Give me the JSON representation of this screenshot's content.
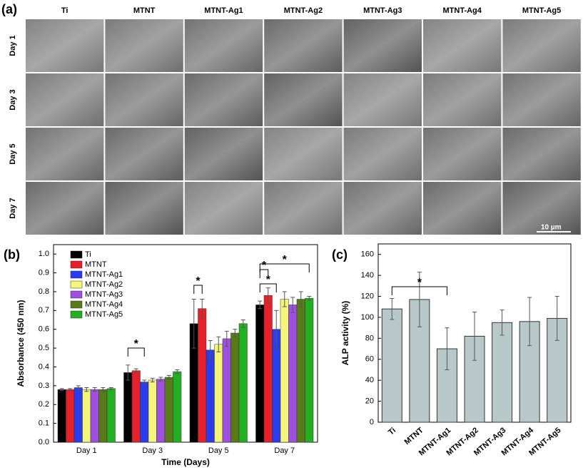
{
  "panel_a": {
    "label": "(a)",
    "columns": [
      "Ti",
      "MTNT",
      "MTNT-Ag1",
      "MTNT-Ag2",
      "MTNT-Ag3",
      "MTNT-Ag4",
      "MTNT-Ag5"
    ],
    "rows": [
      "Day 1",
      "Day 3",
      "Day 5",
      "Day 7"
    ],
    "scale_bar": "10 µm"
  },
  "chart_data": [
    {
      "type": "bar",
      "panel_label": "(b)",
      "x_label": "Time (Days)",
      "y_label": "Absorbance (450 nm)",
      "categories": [
        "Day 1",
        "Day 3",
        "Day 5",
        "Day 7"
      ],
      "series": [
        {
          "name": "Ti",
          "color": "#000000",
          "values": [
            0.28,
            0.37,
            0.63,
            0.73
          ],
          "errors": [
            0.005,
            0.04,
            0.13,
            0.02
          ]
        },
        {
          "name": "MTNT",
          "color": "#e8202a",
          "values": [
            0.28,
            0.38,
            0.71,
            0.78
          ],
          "errors": [
            0.005,
            0.01,
            0.05,
            0.04
          ]
        },
        {
          "name": "MTNT-Ag1",
          "color": "#2a3cf0",
          "values": [
            0.29,
            0.32,
            0.49,
            0.6
          ],
          "errors": [
            0.01,
            0.01,
            0.05,
            0.1
          ]
        },
        {
          "name": "MTNT-Ag2",
          "color": "#f5f57a",
          "values": [
            0.28,
            0.33,
            0.52,
            0.76
          ],
          "errors": [
            0.01,
            0.01,
            0.04,
            0.04
          ]
        },
        {
          "name": "MTNT-Ag3",
          "color": "#a050e0",
          "values": [
            0.28,
            0.335,
            0.55,
            0.73
          ],
          "errors": [
            0.01,
            0.01,
            0.04,
            0.04
          ]
        },
        {
          "name": "MTNT-Ag4",
          "color": "#5a7a1a",
          "values": [
            0.28,
            0.345,
            0.58,
            0.76
          ],
          "errors": [
            0.01,
            0.01,
            0.02,
            0.04
          ]
        },
        {
          "name": "MTNT-Ag5",
          "color": "#22b022",
          "values": [
            0.285,
            0.375,
            0.63,
            0.765
          ],
          "errors": [
            0.005,
            0.01,
            0.02,
            0.01
          ]
        }
      ],
      "ylim": [
        0,
        1.05
      ],
      "yticks": [
        {
          "value": 0,
          "label": "0.0"
        },
        0.1,
        0.2,
        0.3,
        0.4,
        0.5,
        0.6,
        0.7,
        0.8,
        0.9,
        {
          "value": 1,
          "label": "1.0"
        }
      ],
      "legend": "top-left",
      "annotations": [
        "*",
        "*",
        "*",
        "*",
        "*"
      ]
    },
    {
      "type": "bar",
      "panel_label": "(c)",
      "y_label": "ALP activity  (%)",
      "categories": [
        "Ti",
        "MTNT",
        "MTNT-Ag1",
        "MTNT-Ag2",
        "MTNT-Ag3",
        "MTNT-Ag4",
        "MTNT-Ag5"
      ],
      "values": [
        108,
        117,
        70,
        82,
        95,
        96,
        99
      ],
      "errors": [
        10,
        26,
        20,
        23,
        12,
        23,
        21
      ],
      "color": "#b8c8c8",
      "ylim": [
        0,
        170
      ],
      "yticks": [
        0,
        20,
        40,
        60,
        80,
        100,
        120,
        140,
        160
      ],
      "annotations": [
        "*"
      ]
    }
  ]
}
